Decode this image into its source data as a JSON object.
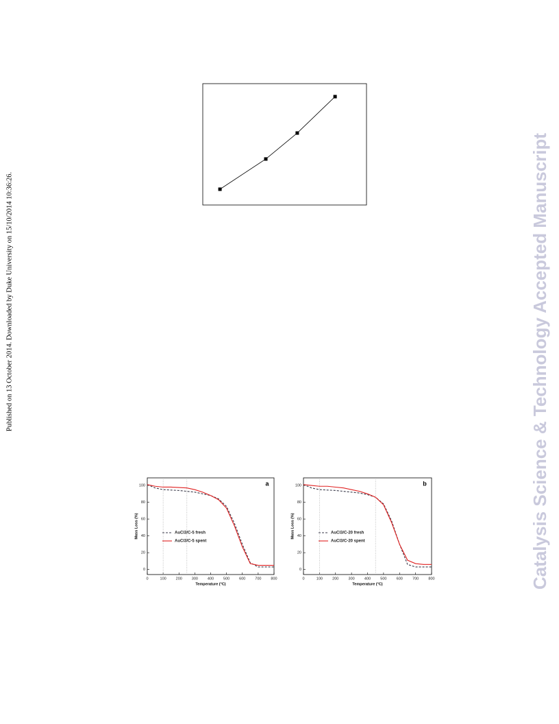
{
  "side_note": "Published on 13 October 2014. Downloaded by Duke University on 15/10/2014 10:36:26.",
  "watermark": "Catalysis Science & Technology Accepted Manuscript",
  "chart_data": [
    {
      "type": "line",
      "x": [
        1.05,
        3.85,
        5.77,
        8.08
      ],
      "xlim": [
        0,
        10
      ],
      "ylim": [
        0,
        10
      ],
      "series": [
        {
          "color": "#000000",
          "marker": "square",
          "values": [
            1.3,
            3.79,
            5.93,
            8.93
          ]
        }
      ]
    },
    {
      "type": "line",
      "title": "a",
      "xlabel": "Temperature (°C)",
      "ylabel": "Mass Loss (%)",
      "x": [
        0,
        50,
        100,
        150,
        200,
        250,
        300,
        350,
        400,
        450,
        500,
        550,
        600,
        650,
        700,
        750,
        800
      ],
      "xlim": [
        0,
        800
      ],
      "ylim": [
        -6,
        109
      ],
      "xticks": [
        0,
        100,
        200,
        300,
        400,
        500,
        600,
        700,
        800
      ],
      "yticks": [
        0,
        20,
        40,
        60,
        80,
        100
      ],
      "reference_lines": [
        100,
        250
      ],
      "series": [
        {
          "name": "AuCl3/C-5 fresh",
          "color": "#3a3a4a",
          "line_style": "dashed",
          "values": [
            101,
            97,
            95,
            94.5,
            94,
            93,
            92,
            90,
            88,
            84,
            75,
            55,
            30,
            8,
            3,
            3,
            3
          ]
        },
        {
          "name": "AuCl3/C-5 spent",
          "color": "#e02020",
          "line_style": "solid",
          "values": [
            101,
            99,
            98,
            98,
            97.5,
            97,
            95,
            92,
            88,
            83,
            73,
            52,
            27,
            7,
            5,
            5,
            5
          ]
        }
      ]
    },
    {
      "type": "line",
      "title": "b",
      "xlabel": "Temperature (°C)",
      "ylabel": "Mass Loss (%)",
      "x": [
        0,
        50,
        100,
        150,
        200,
        250,
        300,
        350,
        400,
        450,
        500,
        550,
        600,
        650,
        700,
        750,
        800
      ],
      "xlim": [
        0,
        800
      ],
      "ylim": [
        -6,
        109
      ],
      "xticks": [
        0,
        100,
        200,
        300,
        400,
        500,
        600,
        700,
        800
      ],
      "yticks": [
        0,
        20,
        40,
        60,
        80,
        100
      ],
      "reference_lines": [
        100,
        450
      ],
      "series": [
        {
          "name": "AuCl3/C-20 fresh",
          "color": "#3a3a4a",
          "line_style": "dashed",
          "values": [
            101,
            97,
            95,
            94.5,
            94,
            93,
            92,
            91,
            89,
            86,
            78,
            58,
            30,
            6,
            3,
            3,
            3
          ]
        },
        {
          "name": "AuCl3/C-20 spent",
          "color": "#e02020",
          "line_style": "solid",
          "values": [
            101,
            100,
            99,
            99,
            98,
            97,
            95,
            93,
            90,
            86,
            77,
            56,
            30,
            11,
            7,
            6,
            6
          ]
        }
      ]
    }
  ]
}
